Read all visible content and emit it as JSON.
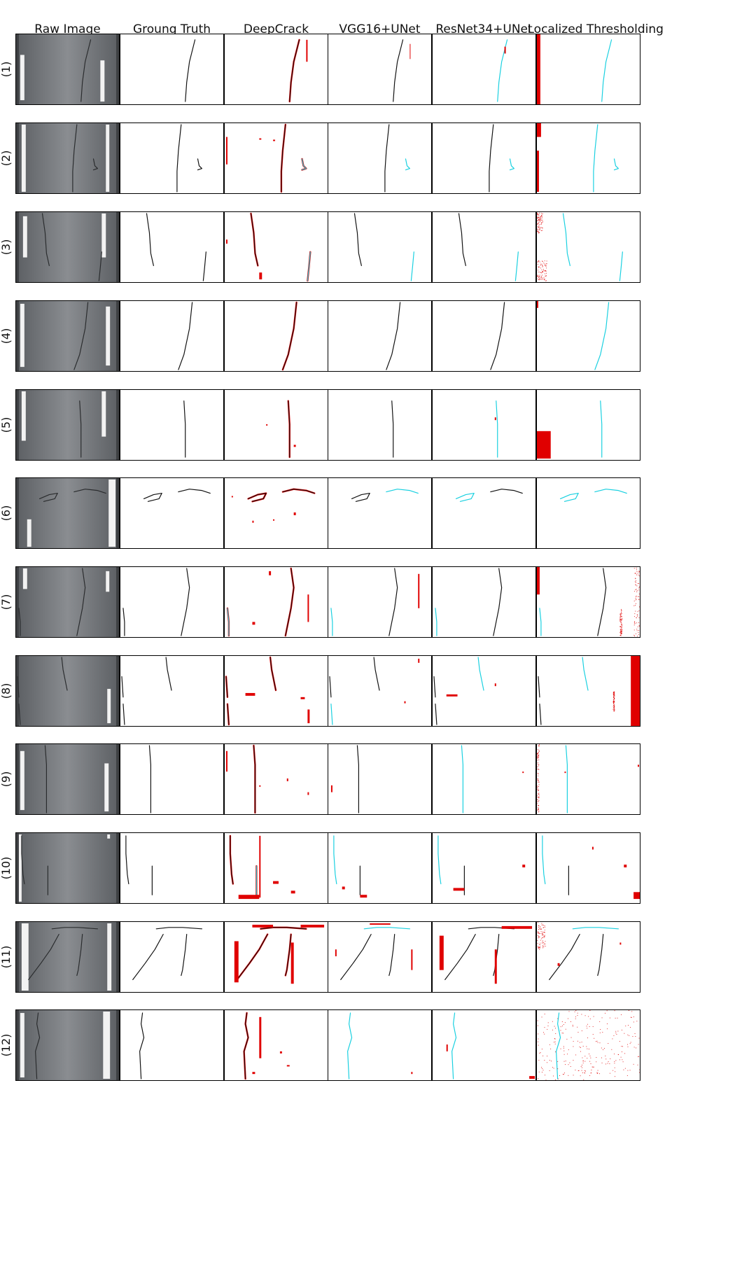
{
  "columns": [
    {
      "key": "raw",
      "label": "Raw Image"
    },
    {
      "key": "gt",
      "label": "Groung Truth"
    },
    {
      "key": "deepcrack",
      "label": "DeepCrack"
    },
    {
      "key": "vgg",
      "label": "VGG16+UNet"
    },
    {
      "key": "resnet",
      "label": "ResNet34+UNet"
    },
    {
      "key": "lt",
      "label": "Localized Thresholding"
    }
  ],
  "rows": [
    {
      "label": "(1)"
    },
    {
      "label": "(2)"
    },
    {
      "label": "(3)"
    },
    {
      "label": "(4)"
    },
    {
      "label": "(5)"
    },
    {
      "label": "(6)"
    },
    {
      "label": "(7)"
    },
    {
      "label": "(8)"
    },
    {
      "label": "(9)"
    },
    {
      "label": "(10)"
    },
    {
      "label": "(11)"
    },
    {
      "label": "(12)"
    }
  ],
  "colors": {
    "true_positive": "#111111",
    "false_positive": "#e00000",
    "false_negative": "#19d0e0",
    "pavement_dark": "#5c5f63",
    "pavement_light": "#8a8d91",
    "lane_marking": "#f2f2f2",
    "panel_border": "#000000"
  },
  "legend_semantics": {
    "true_positive": "black",
    "false_positive": "red",
    "false_negative": "cyan"
  }
}
